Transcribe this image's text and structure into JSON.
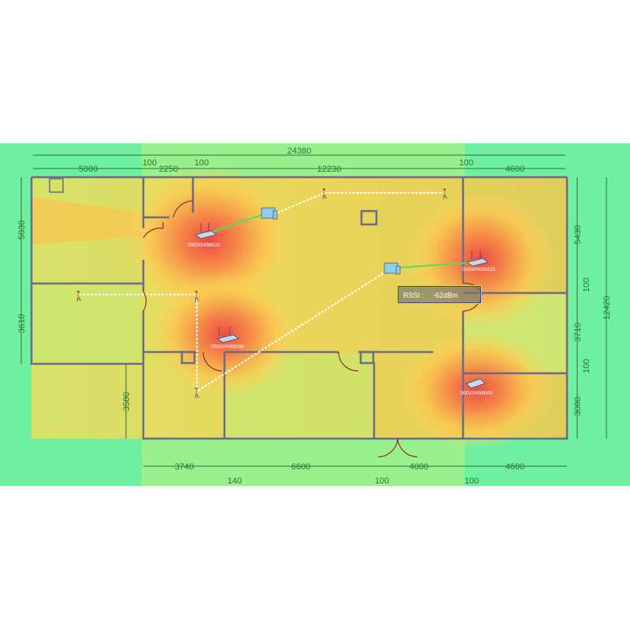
{
  "colors": {
    "background": "#6ef0a0",
    "strong": "#f05050",
    "medium": "#fbb040",
    "weak": "#f4e060",
    "wall": "#6b6b8a",
    "dimension": "#2f6f3f",
    "link": "#50e060"
  },
  "dimensions": {
    "top_total": "24380",
    "top": [
      "5000",
      "100",
      "2250",
      "100",
      "12230",
      "100",
      "4600"
    ],
    "left": [
      "5030",
      "3610",
      "3580"
    ],
    "right": [
      "5430",
      "100",
      "3710",
      "100",
      "3080"
    ],
    "right_total": "12420",
    "bottom": [
      "3740",
      "6600",
      "4000",
      "4600"
    ],
    "bottom_gaps": [
      "140",
      "100",
      "100"
    ]
  },
  "access_points": [
    {
      "id": "00030f499020",
      "icon": "router-icon"
    },
    {
      "id": "00030f498d20",
      "icon": "router-icon"
    },
    {
      "id": "00030f499240",
      "icon": "router-icon"
    },
    {
      "id": "00030f498b00",
      "icon": "router-icon"
    }
  ],
  "tooltip": {
    "label": "RSSI :",
    "value": "-62dBm"
  }
}
